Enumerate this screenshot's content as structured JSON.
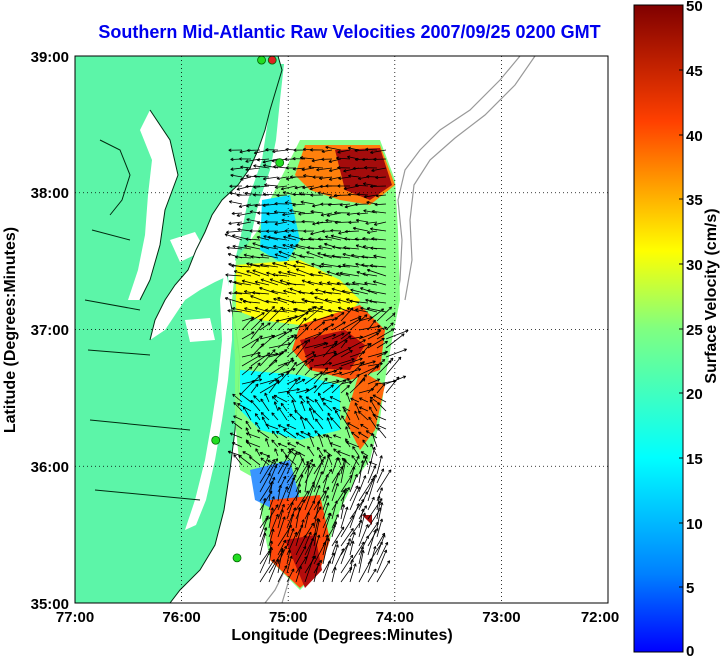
{
  "title": "Southern Mid-Atlantic Raw Velocities 2007/09/25 0200 GMT",
  "axes": {
    "xlabel": "Longitude (Degrees:Minutes)",
    "ylabel": "Latitude (Degrees:Minutes)",
    "x_ticks": [
      "77:00",
      "76:00",
      "75:00",
      "74:00",
      "73:00",
      "72:00"
    ],
    "y_ticks": [
      "39:00",
      "38:00",
      "37:00",
      "36:00",
      "35:00"
    ],
    "x_range_deg_west": [
      77,
      72
    ],
    "y_range_deg_north": [
      35,
      39
    ],
    "grid": "dotted"
  },
  "colorbar": {
    "label": "Surface Velocity (cm/s)",
    "ticks": [
      "50",
      "45",
      "40",
      "35",
      "30",
      "25",
      "20",
      "15",
      "10",
      "5",
      "0"
    ],
    "range": [
      0,
      50
    ],
    "colormap": "jet"
  },
  "colors": {
    "land": "#5cf5a8",
    "coast": "#002a10",
    "title": "#0000ee",
    "bathymetry": "#999999",
    "station": "#22dd22",
    "station_alt": "#dd2222"
  },
  "stations": [
    {
      "lon": 75.15,
      "lat": 38.97,
      "color": "red"
    },
    {
      "lon": 75.25,
      "lat": 38.97,
      "color": "green"
    },
    {
      "lon": 75.08,
      "lat": 38.22,
      "color": "green"
    },
    {
      "lon": 75.68,
      "lat": 36.19,
      "color": "green"
    },
    {
      "lon": 75.48,
      "lat": 35.33,
      "color": "green"
    }
  ]
}
